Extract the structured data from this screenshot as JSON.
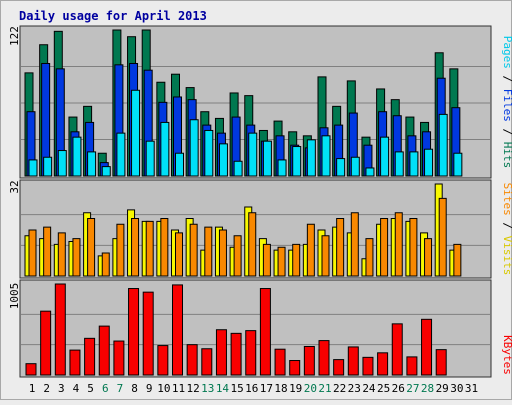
{
  "chart_data": [
    {
      "type": "bar",
      "title": "Daily usage for April 2013",
      "ylabel_parts": [
        "Pages",
        " / ",
        "Files",
        " / ",
        "Hits"
      ],
      "ymax_label": "122",
      "categories": [
        "1",
        "2",
        "3",
        "4",
        "5",
        "6",
        "7",
        "8",
        "9",
        "10",
        "11",
        "12",
        "13",
        "14",
        "15",
        "16",
        "17",
        "18",
        "19",
        "20",
        "21",
        "22",
        "23",
        "24",
        "25",
        "26",
        "27",
        "28",
        "29",
        "30",
        "31"
      ],
      "weekend_days": [
        "6",
        "7",
        "13",
        "14",
        "20",
        "21",
        "27",
        "28"
      ],
      "series": [
        {
          "name": "Hits",
          "values": [
            77,
            98,
            108,
            44,
            52,
            17,
            109,
            104,
            109,
            70,
            76,
            66,
            48,
            43,
            62,
            60,
            34,
            41,
            33,
            30,
            74,
            52,
            71,
            29,
            65,
            57,
            44,
            40,
            92,
            80,
            0
          ]
        },
        {
          "name": "Files",
          "values": [
            48,
            84,
            80,
            33,
            40,
            10,
            83,
            84,
            79,
            55,
            59,
            57,
            38,
            32,
            44,
            38,
            26,
            30,
            23,
            21,
            36,
            38,
            47,
            23,
            48,
            45,
            30,
            33,
            73,
            51,
            0
          ]
        },
        {
          "name": "Pages",
          "values": [
            12,
            14,
            19,
            29,
            18,
            7,
            32,
            64,
            26,
            40,
            17,
            42,
            34,
            24,
            11,
            32,
            26,
            12,
            22,
            27,
            30,
            13,
            14,
            6,
            29,
            18,
            18,
            20,
            46,
            17,
            0
          ]
        }
      ]
    },
    {
      "type": "bar",
      "ylabel_parts": [
        "Sites",
        " / ",
        "Visits"
      ],
      "ymax_label": "32",
      "categories": [
        "1",
        "2",
        "3",
        "4",
        "5",
        "6",
        "7",
        "8",
        "9",
        "10",
        "11",
        "12",
        "13",
        "14",
        "15",
        "16",
        "17",
        "18",
        "19",
        "20",
        "21",
        "22",
        "23",
        "24",
        "25",
        "26",
        "27",
        "28",
        "29",
        "30",
        "31"
      ],
      "series": [
        {
          "name": "Visits",
          "values": [
            14,
            13,
            11,
            12,
            22,
            7,
            13,
            23,
            19,
            19,
            16,
            20,
            9,
            17,
            10,
            24,
            13,
            9,
            9,
            11,
            16,
            17,
            15,
            6,
            18,
            20,
            19,
            15,
            32,
            9,
            0
          ]
        },
        {
          "name": "Sites",
          "values": [
            16,
            17,
            15,
            13,
            20,
            8,
            18,
            20,
            19,
            20,
            15,
            18,
            17,
            16,
            14,
            22,
            11,
            10,
            11,
            18,
            14,
            20,
            22,
            13,
            20,
            22,
            20,
            13,
            27,
            11,
            0
          ]
        }
      ]
    },
    {
      "type": "bar",
      "ylabel_parts": [
        "KBytes"
      ],
      "ymax_label": "1005",
      "categories": [
        "1",
        "2",
        "3",
        "4",
        "5",
        "6",
        "7",
        "8",
        "9",
        "10",
        "11",
        "12",
        "13",
        "14",
        "15",
        "16",
        "17",
        "18",
        "19",
        "20",
        "21",
        "22",
        "23",
        "24",
        "25",
        "26",
        "27",
        "28",
        "29",
        "30",
        "31"
      ],
      "series": [
        {
          "name": "KBytes",
          "values": [
            125,
            705,
            1005,
            275,
            405,
            540,
            375,
            955,
            915,
            325,
            995,
            335,
            290,
            500,
            460,
            490,
            955,
            285,
            160,
            315,
            380,
            170,
            310,
            195,
            245,
            565,
            200,
            615,
            280,
            0,
            0
          ]
        }
      ]
    }
  ],
  "colors": {
    "hits": "#007850",
    "files": "#0038e0",
    "pages": "#00e0f8",
    "visits": "#f8f800",
    "sites": "#f88800",
    "kbytes": "#f80000",
    "title": "#0000a0",
    "weekend_label": "#007850",
    "plot_bg": "#c0c0c0",
    "page_bg": "#ececec"
  }
}
